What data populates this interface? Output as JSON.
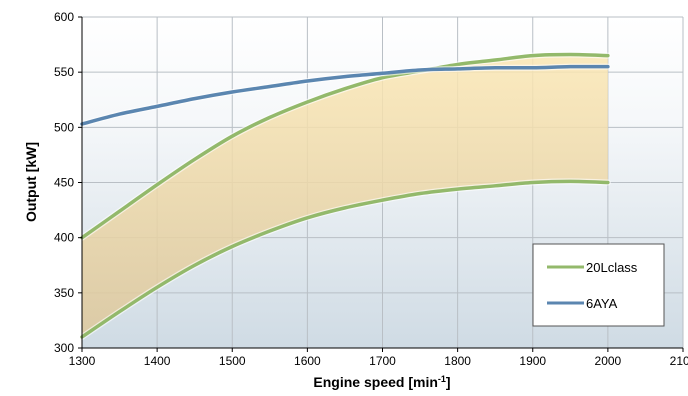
{
  "chart_data": {
    "type": "line",
    "xlabel_main": "Engine speed [min",
    "xlabel_sup": "-1",
    "xlabel_close": "]",
    "ylabel": "Output [kW]",
    "xlim": [
      1300,
      2100
    ],
    "ylim": [
      300,
      600
    ],
    "xticks": [
      "1300",
      "1400",
      "1500",
      "1600",
      "1700",
      "1800",
      "1900",
      "2000",
      "2100"
    ],
    "yticks": [
      "300",
      "350",
      "400",
      "450",
      "500",
      "550",
      "600"
    ],
    "grid": true,
    "legend_position": "bottom-right",
    "series": [
      {
        "name": "20Lclass",
        "role": "upper",
        "color": "#93b96b",
        "x": [
          1300,
          1350,
          1400,
          1450,
          1500,
          1550,
          1600,
          1650,
          1700,
          1750,
          1800,
          1850,
          1900,
          1950,
          2000
        ],
        "y": [
          400,
          424,
          448,
          471,
          492,
          509,
          523,
          535,
          545,
          551,
          557,
          561,
          565,
          566,
          565
        ]
      },
      {
        "name": "20Lclass",
        "role": "lower",
        "color": "#93b96b",
        "x": [
          1300,
          1350,
          1400,
          1450,
          1500,
          1550,
          1600,
          1650,
          1700,
          1750,
          1800,
          1850,
          1900,
          1950,
          2000
        ],
        "y": [
          310,
          333,
          355,
          375,
          392,
          406,
          418,
          427,
          434,
          440,
          444,
          447,
          450,
          451,
          450
        ]
      },
      {
        "name": "6AYA",
        "color": "#5b86b0",
        "x": [
          1300,
          1350,
          1400,
          1450,
          1500,
          1550,
          1600,
          1650,
          1700,
          1750,
          1800,
          1850,
          1900,
          1950,
          2000
        ],
        "y": [
          503,
          512,
          519,
          526,
          532,
          537,
          542,
          546,
          549,
          552,
          553,
          554,
          554,
          555,
          555
        ]
      }
    ],
    "band": {
      "color": "#f5d27a",
      "between": [
        "upper",
        "lower"
      ]
    },
    "legend": [
      {
        "name": "20Lclass",
        "color": "#93b96b"
      },
      {
        "name": "6AYA",
        "color": "#5b86b0"
      }
    ]
  }
}
